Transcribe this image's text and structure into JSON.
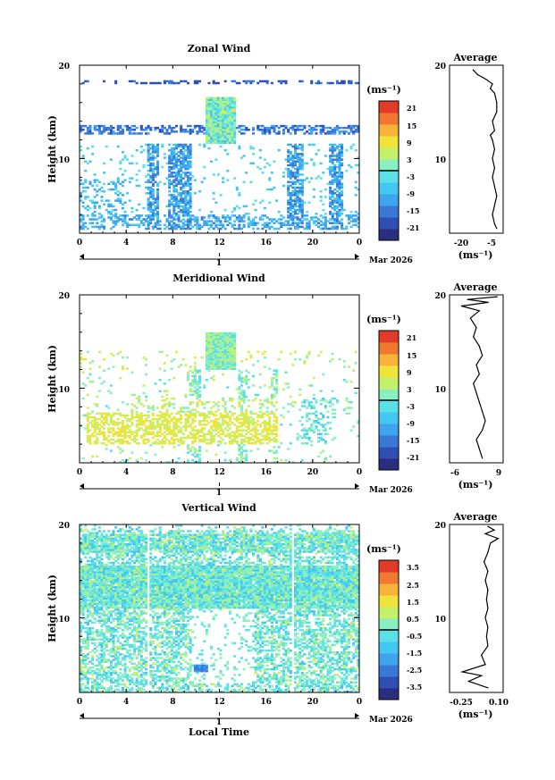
{
  "colors": {
    "scale": [
      "#2b2e7e",
      "#2f4fb4",
      "#3a78d8",
      "#3fa4ee",
      "#43c6f2",
      "#5ce0e6",
      "#8af0c2",
      "#c4f06a",
      "#f0e43a",
      "#f8b23a",
      "#f07830",
      "#e33b2a"
    ],
    "zero_line": "#000000",
    "frame": "#000000"
  },
  "chart_data": [
    {
      "type": "heatmap",
      "title": "Zonal Wind",
      "ylabel": "Height (km)",
      "x_ticks": [
        "0",
        "4",
        "8",
        "12",
        "16",
        "20",
        "0"
      ],
      "y_ticks": [
        "20",
        "10"
      ],
      "date_label": "1",
      "date_suffix": "Mar 2026",
      "xlim": [
        0,
        24
      ],
      "ylim": [
        2,
        20
      ],
      "colorbar": {
        "unit": "(ms⁻¹)",
        "ticks": [
          "21",
          "15",
          "9",
          "3",
          "-3",
          "-9",
          "-15",
          "-21"
        ],
        "range": [
          -24,
          24
        ]
      },
      "profile": {
        "title": "Average",
        "x_ticks": [
          "-20",
          "-5"
        ],
        "y_ticks": [
          "20",
          "10"
        ],
        "xlabel": "(ms⁻¹)",
        "xlim": [
          -25,
          0
        ],
        "ylim": [
          2,
          20
        ],
        "points": [
          [
            -14,
            19.5
          ],
          [
            -12,
            19
          ],
          [
            -8,
            18.5
          ],
          [
            -5,
            18
          ],
          [
            -6,
            17.5
          ],
          [
            -4,
            17
          ],
          [
            -3,
            16
          ],
          [
            -3,
            15
          ],
          [
            -5,
            14
          ],
          [
            -4,
            13
          ],
          [
            -6,
            12.5
          ],
          [
            -5,
            12
          ],
          [
            -4,
            11
          ],
          [
            -5,
            10
          ],
          [
            -4,
            9
          ],
          [
            -5,
            8
          ],
          [
            -4,
            7
          ],
          [
            -3,
            6
          ],
          [
            -4,
            5
          ],
          [
            -5,
            4
          ],
          [
            -4,
            3
          ],
          [
            -3,
            2.5
          ]
        ]
      }
    },
    {
      "type": "heatmap",
      "title": "Meridional Wind",
      "ylabel": "Height (km)",
      "x_ticks": [
        "0",
        "4",
        "8",
        "12",
        "16",
        "20",
        "0"
      ],
      "y_ticks": [
        "20",
        "10"
      ],
      "date_label": "1",
      "date_suffix": "Mar 2026",
      "xlim": [
        0,
        24
      ],
      "ylim": [
        2,
        20
      ],
      "colorbar": {
        "unit": "(ms⁻¹)",
        "ticks": [
          "21",
          "15",
          "9",
          "3",
          "-3",
          "-9",
          "-15",
          "-21"
        ],
        "range": [
          -24,
          24
        ]
      },
      "profile": {
        "title": "Average",
        "x_ticks": [
          "-6",
          "9"
        ],
        "y_ticks": [
          "20",
          "10"
        ],
        "xlabel": "(ms⁻¹)",
        "xlim": [
          -8,
          10
        ],
        "ylim": [
          2,
          20
        ],
        "points": [
          [
            8,
            19.8
          ],
          [
            -2,
            19.5
          ],
          [
            5,
            19.2
          ],
          [
            -4,
            18.8
          ],
          [
            2,
            18.3
          ],
          [
            -1,
            17.5
          ],
          [
            1,
            16.5
          ],
          [
            0,
            15.5
          ],
          [
            2,
            14.5
          ],
          [
            3,
            13.5
          ],
          [
            1,
            12.5
          ],
          [
            2,
            11.5
          ],
          [
            0,
            10.5
          ],
          [
            1,
            9.5
          ],
          [
            2,
            8.5
          ],
          [
            3,
            7.5
          ],
          [
            4,
            6.5
          ],
          [
            3,
            5.5
          ],
          [
            1,
            4.5
          ],
          [
            2,
            3.5
          ],
          [
            3,
            2.5
          ]
        ]
      }
    },
    {
      "type": "heatmap",
      "title": "Vertical Wind",
      "ylabel": "Height (km)",
      "xlabel": "Local Time",
      "x_ticks": [
        "0",
        "4",
        "8",
        "12",
        "16",
        "20",
        "0"
      ],
      "y_ticks": [
        "20",
        "10"
      ],
      "date_label": "1",
      "date_suffix": "Mar 2026",
      "xlim": [
        0,
        24
      ],
      "ylim": [
        2,
        20
      ],
      "colorbar": {
        "unit": "(ms⁻¹)",
        "ticks": [
          "3.5",
          "2.5",
          "1.5",
          "0.5",
          "-0.5",
          "-1.5",
          "-2.5",
          "-3.5"
        ],
        "range": [
          -4,
          4
        ]
      },
      "profile": {
        "title": "Average",
        "x_ticks": [
          "-0.25",
          "0.10"
        ],
        "y_ticks": [
          "20",
          "10"
        ],
        "xlabel": "(ms⁻¹)",
        "xlim": [
          -0.3,
          0.12
        ],
        "ylim": [
          2,
          20
        ],
        "points": [
          [
            0.0,
            19.8
          ],
          [
            0.05,
            19.4
          ],
          [
            -0.02,
            19.0
          ],
          [
            0.08,
            18.5
          ],
          [
            0.02,
            18.0
          ],
          [
            0.0,
            17.0
          ],
          [
            -0.03,
            16.0
          ],
          [
            0.0,
            15.0
          ],
          [
            -0.02,
            14.0
          ],
          [
            0.0,
            13.0
          ],
          [
            -0.01,
            12.0
          ],
          [
            0.0,
            11.0
          ],
          [
            -0.02,
            10.0
          ],
          [
            0.0,
            9.0
          ],
          [
            -0.01,
            8.0
          ],
          [
            0.0,
            7.0
          ],
          [
            -0.05,
            6.0
          ],
          [
            -0.02,
            5.0
          ],
          [
            -0.2,
            4.2
          ],
          [
            -0.05,
            3.8
          ],
          [
            -0.15,
            3.2
          ],
          [
            0.0,
            2.5
          ]
        ]
      }
    }
  ]
}
